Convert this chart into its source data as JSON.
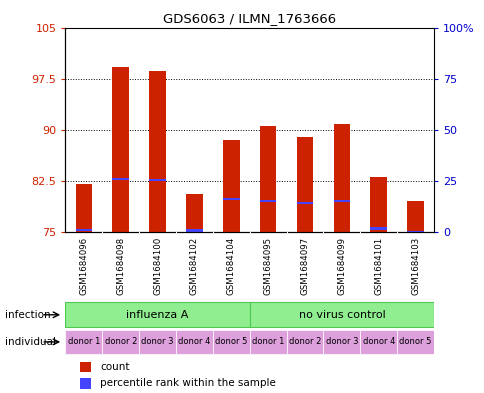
{
  "title": "GDS6063 / ILMN_1763666",
  "samples": [
    "GSM1684096",
    "GSM1684098",
    "GSM1684100",
    "GSM1684102",
    "GSM1684104",
    "GSM1684095",
    "GSM1684097",
    "GSM1684099",
    "GSM1684101",
    "GSM1684103"
  ],
  "red_tops": [
    82.0,
    99.2,
    98.6,
    80.5,
    88.5,
    90.5,
    89.0,
    90.8,
    83.0,
    79.5
  ],
  "red_bottoms": [
    75,
    75,
    75,
    75,
    75,
    75,
    75,
    75,
    75,
    75
  ],
  "blue_positions": [
    75.3,
    82.8,
    82.6,
    75.2,
    79.8,
    79.5,
    79.2,
    79.5,
    75.5,
    75.0
  ],
  "ylim": [
    75,
    105
  ],
  "yticks_left": [
    75,
    82.5,
    90,
    97.5,
    105
  ],
  "yticks_right_vals": [
    0,
    25,
    50,
    75,
    100
  ],
  "yticks_right_positions": [
    75,
    82.5,
    90,
    97.5,
    105
  ],
  "individual_labels": [
    "donor 1",
    "donor 2",
    "donor 3",
    "donor 4",
    "donor 5",
    "donor 1",
    "donor 2",
    "donor 3",
    "donor 4",
    "donor 5"
  ],
  "individual_color": "#DDA0DD",
  "bar_color": "#CC2200",
  "blue_color": "#4444FF",
  "bg_color": "#C8C8C8",
  "plot_bg": "#FFFFFF",
  "ylabel_left_color": "#CC2200",
  "ylabel_right_color": "#0000CC",
  "green_color": "#90EE90",
  "green_border": "#50C850"
}
